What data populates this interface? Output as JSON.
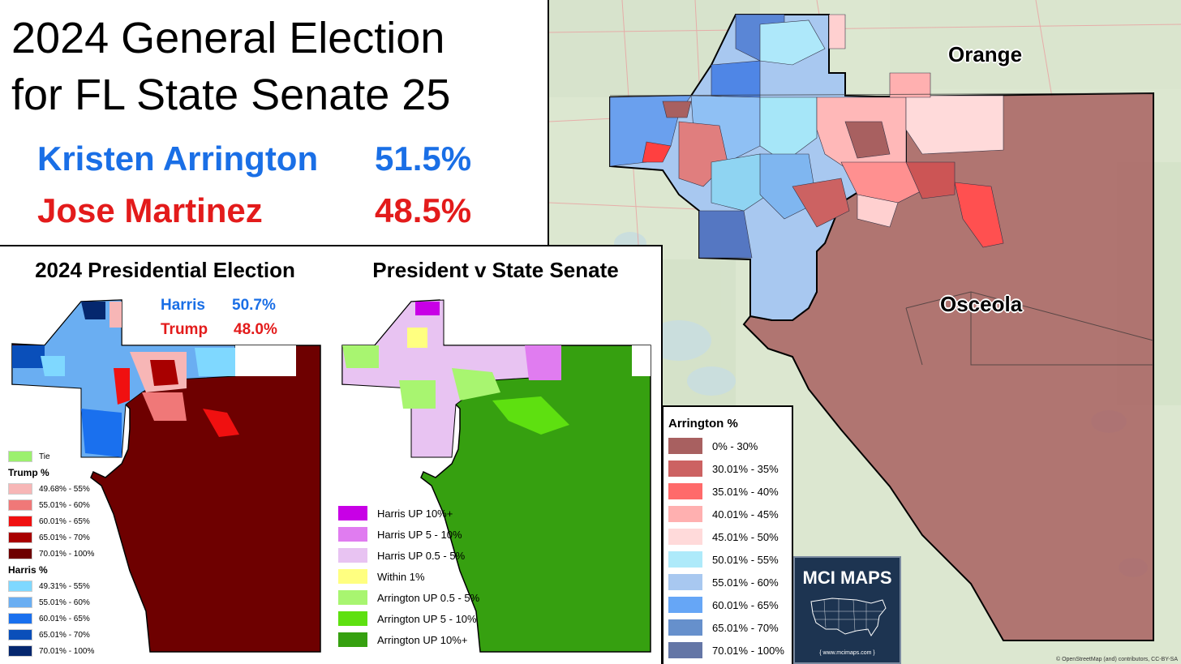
{
  "title": {
    "line1": "2024 General Election",
    "line2": "for FL State Senate 25"
  },
  "candidates": [
    {
      "name": "Kristen Arrington",
      "pct": "51.5%",
      "color": "#1a6fe6"
    },
    {
      "name": "Jose Martinez",
      "pct": "48.5%",
      "color": "#e31b1b"
    }
  ],
  "presidential": {
    "title": "2024 Presidential Election",
    "results": [
      {
        "name": "Harris",
        "pct": "50.7%",
        "color": "#1a6fe6"
      },
      {
        "name": "Trump",
        "pct": "48.0%",
        "color": "#e31b1b"
      }
    ],
    "tie_label": "Tie",
    "trump_header": "Trump  %",
    "harris_header": "Harris  %",
    "trump_bins": [
      "49.68% - 55%",
      "55.01% - 60%",
      "60.01% - 65%",
      "65.01% - 70%",
      "70.01% - 100%"
    ],
    "harris_bins": [
      "49.31% - 55%",
      "55.01% - 60%",
      "60.01% - 65%",
      "65.01% - 70%",
      "70.01% - 100%"
    ],
    "trump_colors": [
      "#f7b6b6",
      "#f07878",
      "#f01010",
      "#a80000",
      "#6e0000"
    ],
    "harris_colors": [
      "#7fd8ff",
      "#6aaef2",
      "#1a70ee",
      "#0a4fba",
      "#05276e"
    ],
    "tie_color": "#9cf06e"
  },
  "comparison": {
    "title": "President v State Senate",
    "bins": [
      "Harris UP 10%+",
      "Harris UP 5 - 10%",
      "Harris UP 0.5 - 5%",
      "Within 1%",
      "Arrington UP 0.5 - 5%",
      "Arrington UP 5 - 10%",
      "Arrington UP 10%+"
    ],
    "colors": [
      "#c800e6",
      "#e07cf0",
      "#e8c3f2",
      "#ffff80",
      "#a8f570",
      "#5ee010",
      "#36a010"
    ]
  },
  "main_legend": {
    "title": "Arrington  %",
    "bins": [
      "0% - 30%",
      "30.01% - 35%",
      "35.01% - 40%",
      "40.01% - 45%",
      "45.01% - 50%",
      "50.01% - 55%",
      "55.01% - 60%",
      "60.01% - 65%",
      "65.01% - 70%",
      "70.01% - 100%"
    ],
    "colors": [
      "#a86060",
      "#cc6262",
      "#ff6a6a",
      "#ffb0b0",
      "#ffdada",
      "#aeeafa",
      "#a8c8f0",
      "#66a6f6",
      "#6690cc",
      "#6476a6"
    ]
  },
  "map_labels": {
    "orange": "Orange",
    "osceola": "Osceola"
  },
  "logo": {
    "text": "MCI MAPS",
    "url": "{ www.mcimaps.com }"
  },
  "attribution": "© OpenStreetMap (and) contributors, CC-BY-SA"
}
